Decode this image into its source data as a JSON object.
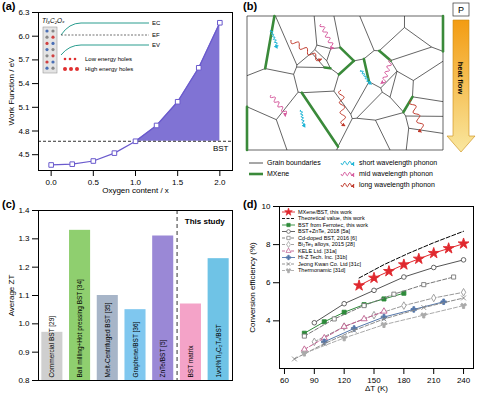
{
  "chart_data": [
    {
      "type": "line",
      "title": "(a)",
      "x_label": "Oxygen content / x",
      "y_label": "Work Function / eV",
      "x": [
        0,
        0.25,
        0.5,
        0.75,
        1.0,
        1.25,
        1.5,
        1.75,
        2.0
      ],
      "values": [
        4.37,
        4.38,
        4.42,
        4.52,
        4.67,
        4.87,
        5.17,
        5.6,
        6.17
      ],
      "color": "#6a5acd",
      "marker": "opensquare",
      "xlim": [
        -0.15,
        2.15
      ],
      "xticks": [
        {
          "value": 0,
          "label": "0.0"
        },
        0.5,
        {
          "value": 1,
          "label": "1.0"
        },
        1.5,
        {
          "value": 2,
          "label": "2.0"
        }
      ],
      "ylim": [
        4.3,
        6.3
      ],
      "yticks": [
        4.5,
        4.8,
        5.1,
        5.4,
        5.7,
        {
          "value": 6,
          "label": "6.0"
        },
        6.3
      ],
      "reference_line": {
        "value": 4.67,
        "label": "BST",
        "line_style": "dashed"
      },
      "inset": {
        "label": "Ti₃C₂Oₓ",
        "levels": [
          "EC",
          "EF",
          "EV"
        ],
        "annotations": [
          "Low energy holes",
          "High energy holes"
        ]
      }
    },
    {
      "type": "diagram",
      "title": "(b)",
      "items": [
        {
          "name": "Grain boundaries",
          "color": "#222222"
        },
        {
          "name": "MXene",
          "color": "#3a8a3a"
        },
        {
          "name": "short wavelength phonon",
          "color": "#1fb5d6"
        },
        {
          "name": "mid wavelength phonon",
          "color": "#d65b9e"
        },
        {
          "name": "long wavelength phonon",
          "color": "#c0392b"
        }
      ],
      "annotations": [
        "heat flow",
        "P"
      ]
    },
    {
      "type": "bar",
      "title": "(c)",
      "y_label": "Average ZT",
      "categories": [
        "Commercial BST [29]",
        "Ball milling+Hot pressing BST [34]",
        "Melt-Centrifuged BST [35]",
        "Graphene/BST [36]",
        "ZnTe/BST [5]",
        "BST matrix",
        "1vol%Ti₃C₂Tₓ/BST"
      ],
      "values": [
        0.97,
        1.33,
        1.1,
        1.05,
        1.31,
        1.07,
        1.23
      ],
      "colors": [
        "#cfcfcf",
        "#8fcf6f",
        "#a7b5c8",
        "#7fc7ef",
        "#9a88d6",
        "#f4a3c8",
        "#6fc3e6"
      ],
      "ylim": [
        0.8,
        1.4
      ],
      "yticks": [
        0.8,
        0.9,
        {
          "value": 1,
          "label": "1.0"
        },
        1.1,
        1.2,
        1.3,
        1.4
      ],
      "tick_labels": "y",
      "annotations": [
        {
          "text": "This study",
          "categories": [
            "BST matrix",
            "1vol%Ti₃C₂Tₓ/BST"
          ]
        }
      ]
    },
    {
      "type": "line",
      "title": "(d)",
      "x_label": "ΔT (K)",
      "y_label": "Conversion efficiency (%)",
      "xlim": [
        55,
        250
      ],
      "xticks": [
        60,
        90,
        120,
        150,
        180,
        210,
        240
      ],
      "ylim": [
        1.5,
        10
      ],
      "yticks": [
        4,
        6,
        8,
        10
      ],
      "legend": "top-left",
      "series": [
        {
          "name": "MXene/BST, this work",
          "color": "#e0282e",
          "marker": "star",
          "line_style": "solid",
          "x": [
            135,
            150,
            165,
            180,
            195,
            210,
            225,
            240
          ],
          "values": [
            5.85,
            6.25,
            6.6,
            6.95,
            7.25,
            7.55,
            7.8,
            8.05
          ]
        },
        {
          "name": "Theoretical value, this work",
          "color": "#000000",
          "marker": "none",
          "line_style": "dashed",
          "x": [
            135,
            160,
            185,
            210,
            240
          ],
          "values": [
            6.25,
            6.95,
            7.55,
            8.1,
            8.7
          ]
        },
        {
          "name": "BST from Ferrotec, this work",
          "color": "#2e8b3a",
          "marker": "square",
          "line_style": "solid",
          "x": [
            80,
            100,
            120,
            140,
            160,
            180
          ],
          "values": [
            3.35,
            3.95,
            4.45,
            4.85,
            5.15,
            5.45
          ]
        },
        {
          "name": "BST+ZnTe, 2018 [5a]",
          "color": "#555555",
          "marker": "opencircle",
          "line_style": "solid",
          "x": [
            90,
            120,
            150,
            180,
            210,
            240
          ],
          "values": [
            3.9,
            4.9,
            5.6,
            6.3,
            6.8,
            7.2
          ]
        },
        {
          "name": "Cd-doped BST, 2016 [6]",
          "color": "#777777",
          "marker": "opensquare",
          "line_style": "dashed",
          "x": [
            80,
            110,
            140,
            170,
            200,
            230
          ],
          "values": [
            3.2,
            4.1,
            4.8,
            5.4,
            5.9,
            6.3
          ]
        },
        {
          "name": "Bi₂Te₃ alloys, 2015 [28]",
          "color": "#999999",
          "marker": "opendiamond",
          "line_style": "dashed",
          "x": [
            90,
            120,
            150,
            180,
            210,
            240
          ],
          "values": [
            2.9,
            3.7,
            4.3,
            4.8,
            5.2,
            5.5
          ]
        },
        {
          "name": "KELE Ltd. [31a]",
          "color": "#c06090",
          "marker": "opentriangle",
          "line_style": "dashed",
          "x": [
            80,
            100,
            120,
            140,
            160
          ],
          "values": [
            2.5,
            3.1,
            3.7,
            4.1,
            4.5
          ]
        },
        {
          "name": "Hi-Z Tech. Inc. [31b]",
          "color": "#5577aa",
          "marker": "cross",
          "line_style": "solid",
          "x": [
            100,
            130,
            160,
            190,
            220
          ],
          "values": [
            2.9,
            3.6,
            4.2,
            4.6,
            5.0
          ]
        },
        {
          "name": "Jeong Kwan Co. Ltd [31c]",
          "color": "#888888",
          "marker": "times",
          "line_style": "dashed",
          "x": [
            70,
            100,
            130,
            160,
            200,
            240
          ],
          "values": [
            2.0,
            2.8,
            3.5,
            4.1,
            4.7,
            5.2
          ]
        },
        {
          "name": "Thermonamic [31d]",
          "color": "#aaaaaa",
          "marker": "wye",
          "line_style": "dashed",
          "x": [
            80,
            120,
            160,
            200,
            240
          ],
          "values": [
            2.3,
            3.1,
            3.8,
            4.3,
            4.8
          ]
        }
      ]
    }
  ]
}
